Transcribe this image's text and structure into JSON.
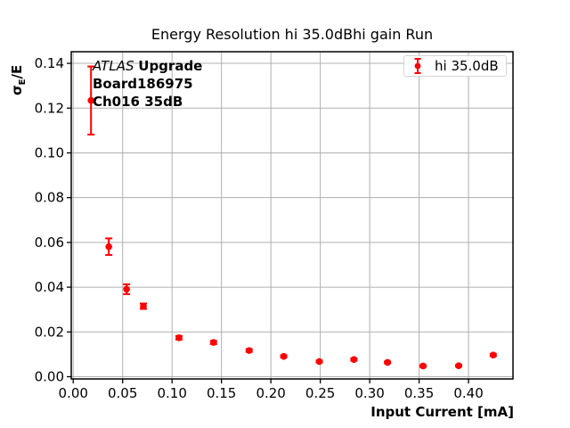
{
  "title": "Energy Resolution hi 35.0dBhi gain Run",
  "xlabel": "Input Current [mA]",
  "ylabel": "σE/E",
  "ylabel_parts": {
    "sigma": "σ",
    "sub": "E",
    "rest": "/E"
  },
  "annotation": {
    "line1_italic": "ATLAS",
    "line1_bold": "Upgrade",
    "line2": "Board186975",
    "line3": "Ch016 35dB"
  },
  "legend": {
    "label": "hi 35.0dB",
    "marker": "errorbar-point-icon"
  },
  "colors": {
    "series": "#ff0000",
    "grid": "#b0b0b0",
    "spine": "#000000",
    "text": "#000000",
    "legend_border": "#d5d5d5"
  },
  "chart_data": {
    "type": "scatter",
    "title": "Energy Resolution hi 35.0dBhi gain Run",
    "xlabel": "Input Current [mA]",
    "ylabel": "σE/E",
    "grid": true,
    "legend_position": "upper right",
    "xlim": [
      -0.002,
      0.445
    ],
    "ylim": [
      -0.001,
      0.1452
    ],
    "xticks": [
      0.0,
      0.05,
      0.1,
      0.15,
      0.2,
      0.25,
      0.3,
      0.35,
      0.4
    ],
    "yticks": [
      0.0,
      0.02,
      0.04,
      0.06,
      0.08,
      0.1,
      0.12,
      0.14
    ],
    "tick_decimals": 2,
    "series": [
      {
        "name": "hi 35.0dB",
        "marker": "circle-with-errorbars",
        "x": [
          0.018,
          0.036,
          0.054,
          0.071,
          0.107,
          0.142,
          0.178,
          0.213,
          0.249,
          0.284,
          0.318,
          0.354,
          0.39,
          0.425
        ],
        "y": [
          0.1234,
          0.0581,
          0.0391,
          0.0315,
          0.0174,
          0.0153,
          0.0117,
          0.0091,
          0.0068,
          0.0077,
          0.0064,
          0.0048,
          0.0049,
          0.0097
        ],
        "yerr": [
          0.0152,
          0.0037,
          0.0022,
          0.0012,
          0.0008,
          0.0007,
          0.0006,
          0.0005,
          0.0004,
          0.0005,
          0.0004,
          0.0004,
          0.0004,
          0.0005
        ]
      }
    ]
  }
}
